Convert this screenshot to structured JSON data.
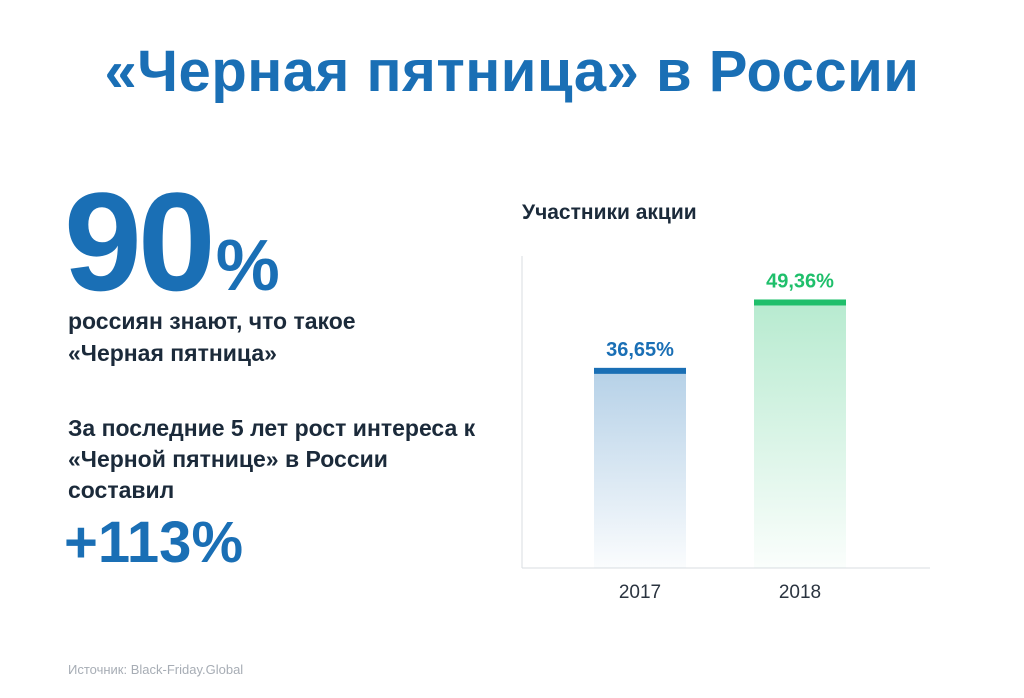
{
  "title": "«Черная пятница» в России",
  "stat": {
    "value": "90",
    "unit": "%",
    "caption": "россиян знают, что такое «Черная пятница»"
  },
  "growth": {
    "caption": "За последние 5 лет рост интереса к «Черной пятнице» в России составил",
    "value": "+113%"
  },
  "source": "Источник: Black-Friday.Global",
  "colors": {
    "title": "#1a6fb5",
    "text": "#1b2a3a",
    "bar_2017": "#1a6fb5",
    "bar_2018": "#1fbf6b",
    "source": "#a7adb5"
  },
  "chart_data": {
    "type": "bar",
    "title": "Участники акции",
    "categories": [
      "2017",
      "2018"
    ],
    "values": [
      36.65,
      49.36
    ],
    "value_labels": [
      "36,65%",
      "49,36%"
    ],
    "xlabel": "",
    "ylabel": "",
    "ylim": [
      0,
      58
    ],
    "grid": false,
    "legend": "none"
  }
}
